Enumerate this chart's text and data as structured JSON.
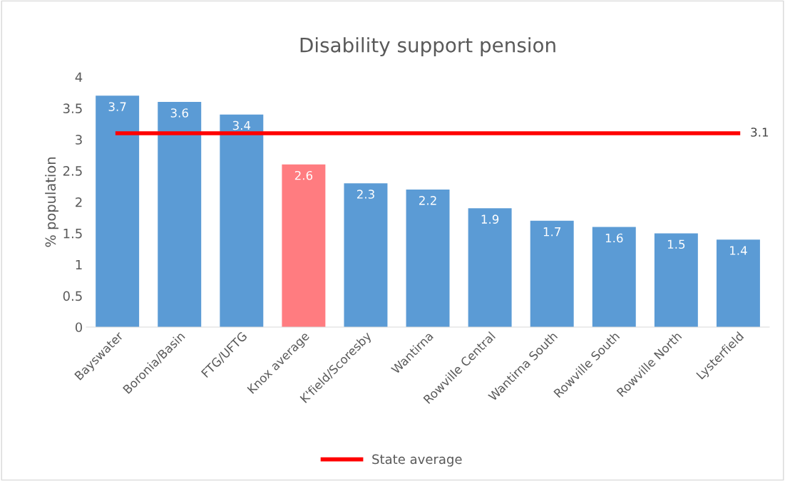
{
  "chart_data": {
    "type": "bar",
    "title": "Disability support pension",
    "ylabel": "% population",
    "categories": [
      "Bayswater",
      "Boronia/Basin",
      "FTG/UFTG",
      "Knox average",
      "K'field/Scoresby",
      "Wantirna",
      "Rowville Central",
      "Wantirna South",
      "Rowville South",
      "Rowville North",
      "Lysterfield"
    ],
    "series": [
      {
        "colors": [
          "#5b9bd5",
          "#5b9bd5",
          "#5b9bd5",
          "#ff7c80",
          "#5b9bd5",
          "#5b9bd5",
          "#5b9bd5",
          "#5b9bd5",
          "#5b9bd5",
          "#5b9bd5",
          "#5b9bd5"
        ],
        "values": [
          3.7,
          3.6,
          3.4,
          2.6,
          2.3,
          2.2,
          1.9,
          1.7,
          1.6,
          1.5,
          1.4
        ],
        "value_labels": [
          "3.7",
          "3.6",
          "3.4",
          "2.6",
          "2.3",
          "2.2",
          "1.9",
          "1.7",
          "1.6",
          "1.5",
          "1.4"
        ]
      },
      {
        "type": "line",
        "name": "State average",
        "color": "#ff0000",
        "values": [
          3.1,
          3.1,
          3.1,
          3.1,
          3.1,
          3.1,
          3.1,
          3.1,
          3.1,
          3.1,
          3.1
        ],
        "value_labels": [
          null,
          null,
          null,
          null,
          null,
          null,
          null,
          null,
          null,
          null,
          "3.1"
        ]
      }
    ],
    "ylim": [
      0,
      4
    ],
    "yticks": [
      0,
      0.5,
      1,
      1.5,
      2,
      2.5,
      3,
      3.5,
      4
    ],
    "grid": false,
    "legend": "bottom"
  }
}
